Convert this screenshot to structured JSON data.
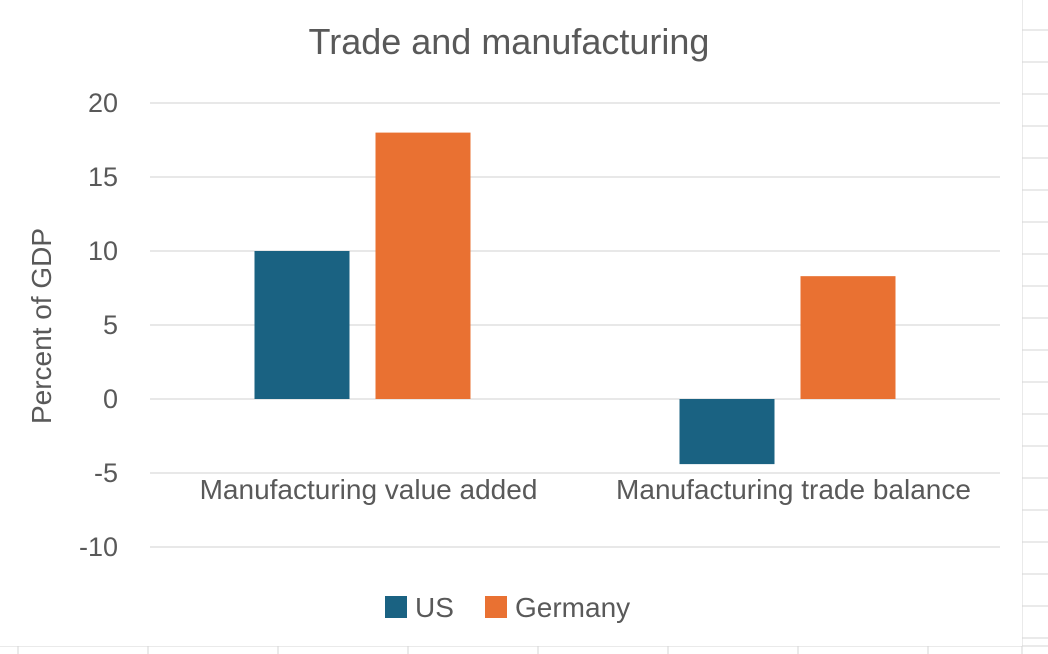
{
  "chart_data": {
    "type": "bar",
    "title": "Trade and manufacturing",
    "xlabel": "",
    "ylabel": "Percent of GDP",
    "categories": [
      "Manufacturing value added",
      "Manufacturing trade balance"
    ],
    "series": [
      {
        "name": "US",
        "values": [
          10,
          -4.4
        ],
        "color": "#1a6282"
      },
      {
        "name": "Germany",
        "values": [
          18,
          8.3
        ],
        "color": "#e97132"
      }
    ],
    "ylim": [
      -10,
      20
    ],
    "yticks": [
      20,
      15,
      10,
      5,
      0,
      -5,
      -10
    ],
    "grid": true,
    "legend": "bottom",
    "colors": {
      "gridline": "#d9d9d9",
      "text": "#595959",
      "sheet_grid": "#d4d4d4"
    }
  }
}
